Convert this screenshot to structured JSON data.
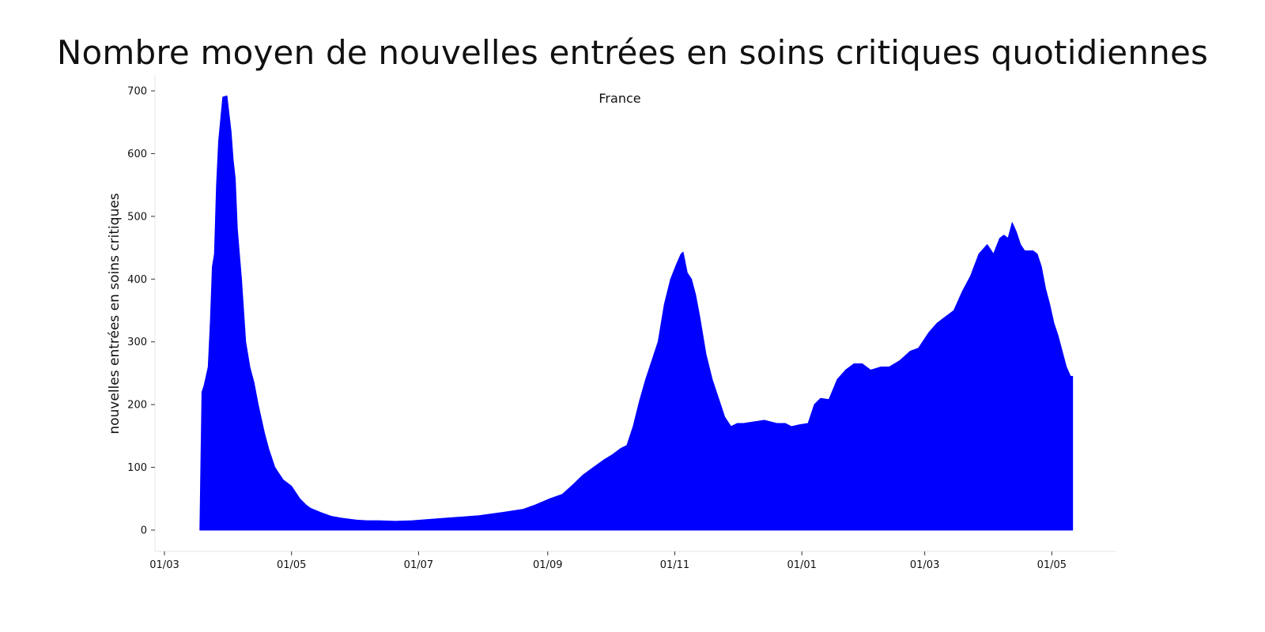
{
  "chart_data": {
    "type": "area",
    "title": "Nombre moyen de nouvelles entrées en soins critiques quotidiennes",
    "annotation": "France",
    "xlabel": "",
    "ylabel": "nouvelles entrées en soins critiques",
    "ylim": [
      0,
      700
    ],
    "yticks": [
      0,
      100,
      200,
      300,
      400,
      500,
      600,
      700
    ],
    "xlim": [
      "2020-03-01",
      "2021-06-01"
    ],
    "xticks": [
      {
        "date": "2020-03-01",
        "label": "01/03"
      },
      {
        "date": "2020-05-01",
        "label": "01/05"
      },
      {
        "date": "2020-07-01",
        "label": "01/07"
      },
      {
        "date": "2020-09-01",
        "label": "01/09"
      },
      {
        "date": "2020-11-01",
        "label": "01/11"
      },
      {
        "date": "2021-01-01",
        "label": "01/01"
      },
      {
        "date": "2021-03-01",
        "label": "01/03"
      },
      {
        "date": "2021-05-01",
        "label": "01/05"
      }
    ],
    "grid": false,
    "fill_color": "#0000ff",
    "series": [
      {
        "x": [
          "2020-03-18",
          "2020-03-19",
          "2020-03-20",
          "2020-03-22",
          "2020-03-23",
          "2020-03-24",
          "2020-03-25",
          "2020-03-26",
          "2020-03-27",
          "2020-03-29",
          "2020-03-31",
          "2020-04-02",
          "2020-04-03",
          "2020-04-04",
          "2020-04-05",
          "2020-04-07",
          "2020-04-09",
          "2020-04-11",
          "2020-04-13",
          "2020-04-15",
          "2020-04-17",
          "2020-04-18",
          "2020-04-20",
          "2020-04-21",
          "2020-04-23",
          "2020-04-25",
          "2020-04-27",
          "2020-04-29",
          "2020-05-01",
          "2020-05-03",
          "2020-05-05",
          "2020-05-08",
          "2020-05-10",
          "2020-05-15",
          "2020-05-20",
          "2020-05-25",
          "2020-06-01",
          "2020-06-06",
          "2020-06-12",
          "2020-06-20",
          "2020-06-28",
          "2020-07-06",
          "2020-07-14",
          "2020-07-22",
          "2020-07-30",
          "2020-08-10",
          "2020-08-20",
          "2020-08-26",
          "2020-09-02",
          "2020-09-08",
          "2020-09-13",
          "2020-09-18",
          "2020-09-23",
          "2020-09-28",
          "2020-10-02",
          "2020-10-06",
          "2020-10-09",
          "2020-10-12",
          "2020-10-15",
          "2020-10-18",
          "2020-10-21",
          "2020-10-24",
          "2020-10-27",
          "2020-10-30",
          "2020-11-02",
          "2020-11-04",
          "2020-11-05",
          "2020-11-07",
          "2020-11-09",
          "2020-11-11",
          "2020-11-13",
          "2020-11-16",
          "2020-11-19",
          "2020-11-22",
          "2020-11-25",
          "2020-11-28",
          "2020-12-01",
          "2020-12-04",
          "2020-12-08",
          "2020-12-14",
          "2020-12-20",
          "2020-12-24",
          "2020-12-27",
          "2020-12-31",
          "2021-01-04",
          "2021-01-07",
          "2021-01-10",
          "2021-01-14",
          "2021-01-18",
          "2021-01-22",
          "2021-01-26",
          "2021-01-30",
          "2021-02-03",
          "2021-02-08",
          "2021-02-12",
          "2021-02-17",
          "2021-02-22",
          "2021-02-26",
          "2021-03-03",
          "2021-03-07",
          "2021-03-11",
          "2021-03-15",
          "2021-03-19",
          "2021-03-23",
          "2021-03-27",
          "2021-03-31",
          "2021-04-03",
          "2021-04-06",
          "2021-04-08",
          "2021-04-10",
          "2021-04-12",
          "2021-04-14",
          "2021-04-16",
          "2021-04-18",
          "2021-04-20",
          "2021-04-22",
          "2021-04-24",
          "2021-04-26",
          "2021-04-28",
          "2021-04-30",
          "2021-05-02",
          "2021-05-04",
          "2021-05-06",
          "2021-05-08",
          "2021-05-10",
          "2021-05-11"
        ],
        "y": [
          0,
          220,
          230,
          260,
          330,
          420,
          440,
          550,
          620,
          690,
          692,
          635,
          590,
          560,
          480,
          400,
          300,
          260,
          235,
          200,
          170,
          155,
          130,
          120,
          100,
          90,
          80,
          75,
          70,
          60,
          50,
          40,
          35,
          28,
          22,
          19,
          16,
          15,
          15,
          14,
          15,
          17,
          19,
          21,
          23,
          28,
          33,
          40,
          50,
          57,
          72,
          88,
          100,
          112,
          120,
          130,
          135,
          165,
          205,
          240,
          270,
          300,
          360,
          400,
          425,
          440,
          443,
          410,
          400,
          375,
          340,
          280,
          240,
          210,
          180,
          165,
          170,
          170,
          172,
          175,
          170,
          170,
          165,
          168,
          170,
          200,
          210,
          208,
          240,
          255,
          265,
          265,
          255,
          260,
          260,
          270,
          285,
          290,
          315,
          330,
          340,
          350,
          380,
          405,
          440,
          455,
          440,
          465,
          470,
          465,
          490,
          475,
          455,
          445,
          445,
          445,
          440,
          420,
          385,
          360,
          330,
          310,
          285,
          260,
          245,
          245
        ]
      }
    ]
  }
}
